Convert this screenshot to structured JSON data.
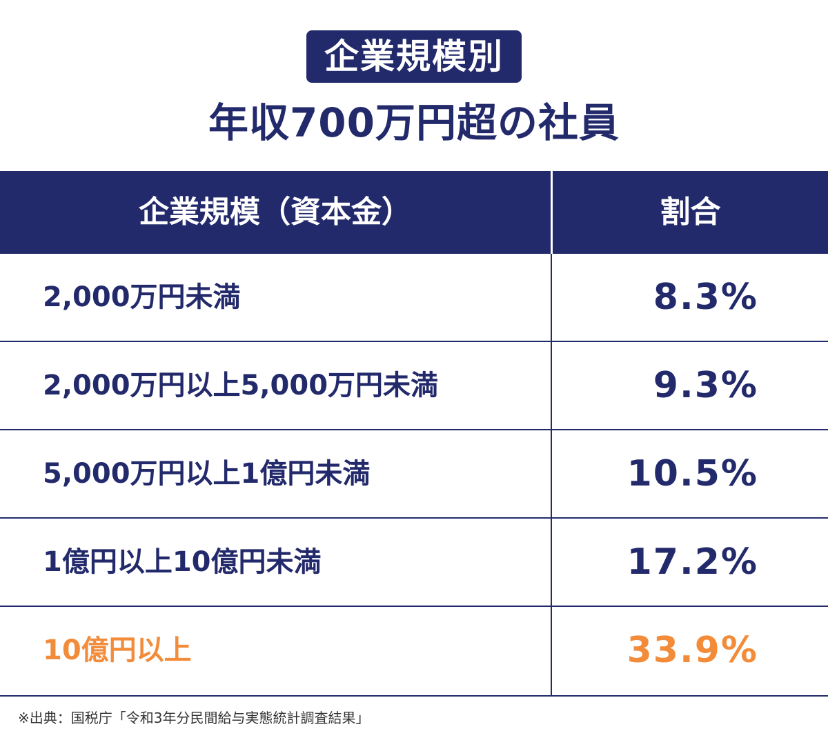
{
  "badge": "企業規模別",
  "title": "年収700万円超の社員",
  "colors": {
    "navy": "#232a6b",
    "highlight": "#f28c3a",
    "white": "#ffffff"
  },
  "chart_data": {
    "type": "table",
    "columns": [
      "企業規模（資本金）",
      "割合"
    ],
    "rows": [
      {
        "category": "2,000万円未満",
        "value": "8.3%",
        "highlight": false
      },
      {
        "category": "2,000万円以上5,000万円未満",
        "value": "9.3%",
        "highlight": false
      },
      {
        "category": "5,000万円以上1億円未満",
        "value": "10.5%",
        "highlight": false
      },
      {
        "category": "1億円以上10億円未満",
        "value": "17.2%",
        "highlight": false
      },
      {
        "category": "10億円以上",
        "value": "33.9%",
        "highlight": true
      }
    ]
  },
  "source": "※出典：国税庁「令和3年分民間給与実態統計調査結果」"
}
